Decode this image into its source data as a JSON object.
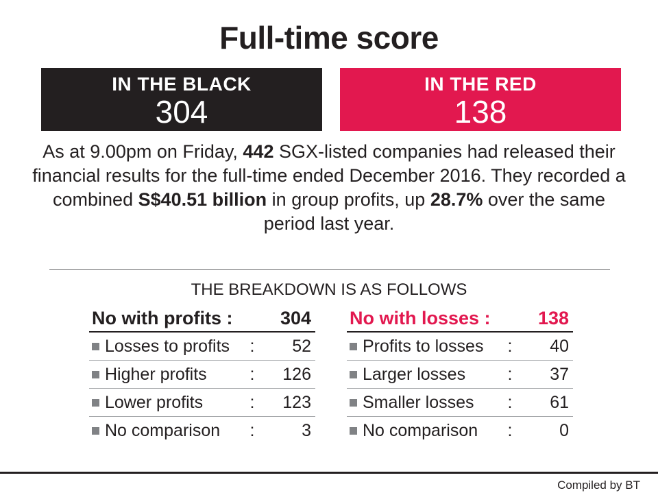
{
  "title": "Full-time score",
  "black_box": {
    "label": "IN THE BLACK",
    "value": "304"
  },
  "red_box": {
    "label": "IN THE RED",
    "value": "138"
  },
  "paragraph": {
    "p1": "As at 9.00pm on Friday, ",
    "b1": "442",
    "p2": " SGX-listed companies had released their financial results for the full-time ended December 2016. They recorded a combined ",
    "b2": "S$40.51 billion",
    "p3": " in group profits, up ",
    "b3": "28.7%",
    "p4": " over the same period last year."
  },
  "breakdown_heading": "THE BREAKDOWN IS AS FOLLOWS",
  "profits": {
    "header_label": "No with profits :",
    "header_value": "304",
    "rows": [
      {
        "label": "Losses to profits",
        "colon": ":",
        "value": "52"
      },
      {
        "label": "Higher profits",
        "colon": ":",
        "value": "126"
      },
      {
        "label": "Lower profits",
        "colon": ":",
        "value": "123"
      },
      {
        "label": "No comparison",
        "colon": ":",
        "value": "3"
      }
    ]
  },
  "losses": {
    "header_label": "No with losses :",
    "header_value": "138",
    "rows": [
      {
        "label": "Profits to losses",
        "colon": ":",
        "value": "40"
      },
      {
        "label": "Larger losses",
        "colon": ":",
        "value": "37"
      },
      {
        "label": "Smaller losses",
        "colon": ":",
        "value": "61"
      },
      {
        "label": "No comparison",
        "colon": ":",
        "value": "0"
      }
    ]
  },
  "credit": "Compiled by BT",
  "colors": {
    "black": "#231f20",
    "red": "#e2184f",
    "bullet": "#808285"
  },
  "chart_data": {
    "type": "table",
    "title": "Full-time score",
    "totals": {
      "IN THE BLACK": 304,
      "IN THE RED": 138
    },
    "columns": [
      "No with profits",
      "No with losses"
    ],
    "series": [
      {
        "name": "No with profits",
        "total": 304,
        "categories": [
          "Losses to profits",
          "Higher profits",
          "Lower profits",
          "No comparison"
        ],
        "values": [
          52,
          126,
          123,
          3
        ]
      },
      {
        "name": "No with losses",
        "total": 138,
        "categories": [
          "Profits to losses",
          "Larger losses",
          "Smaller losses",
          "No comparison"
        ],
        "values": [
          40,
          37,
          61,
          0
        ]
      }
    ]
  }
}
